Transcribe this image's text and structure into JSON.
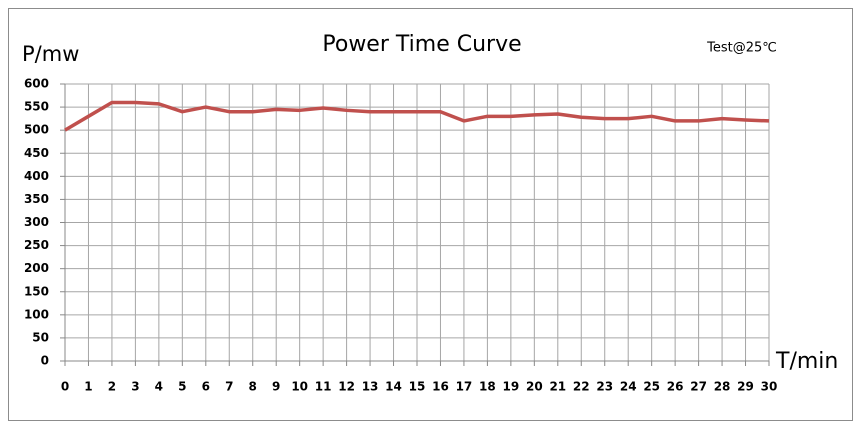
{
  "chart_data": {
    "type": "line",
    "title": "Power Time Curve",
    "annotation": "Test@25℃",
    "y_label": "P/mw",
    "x_label": "T/min",
    "x": [
      0,
      1,
      2,
      3,
      4,
      5,
      6,
      7,
      8,
      9,
      10,
      11,
      12,
      13,
      14,
      15,
      16,
      17,
      18,
      19,
      20,
      21,
      22,
      23,
      24,
      25,
      26,
      27,
      28,
      29,
      30
    ],
    "values": [
      500,
      530,
      560,
      560,
      557,
      540,
      550,
      540,
      540,
      545,
      543,
      548,
      543,
      540,
      540,
      540,
      540,
      520,
      530,
      530,
      533,
      535,
      528,
      525,
      525,
      530,
      520,
      520,
      525,
      522,
      520
    ],
    "color": "#c0504d",
    "xlim": [
      0,
      30
    ],
    "xticks": [
      0,
      1,
      2,
      3,
      4,
      5,
      6,
      7,
      8,
      9,
      10,
      11,
      12,
      13,
      14,
      15,
      16,
      17,
      18,
      19,
      20,
      21,
      22,
      23,
      24,
      25,
      26,
      27,
      28,
      29,
      30
    ],
    "ylim": [
      0,
      600
    ],
    "yticks": [
      0,
      50,
      100,
      150,
      200,
      250,
      300,
      350,
      400,
      450,
      500,
      550,
      600
    ],
    "grid": true
  }
}
